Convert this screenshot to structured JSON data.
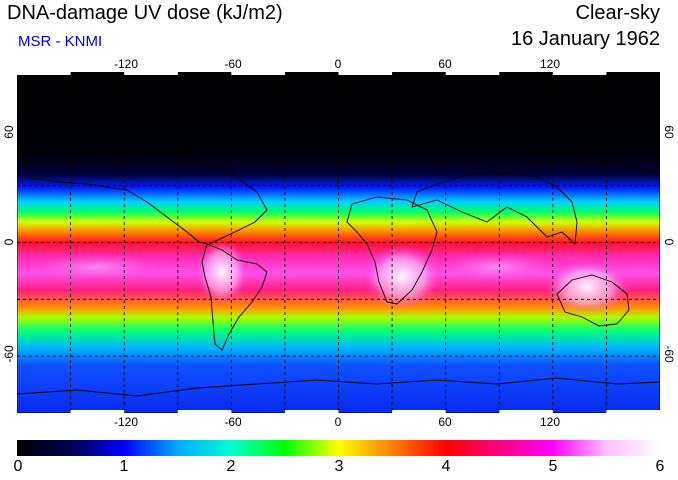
{
  "header": {
    "title": "DNA-damage UV dose (kJ/m2)",
    "source": "MSR - KNMI",
    "sky_condition": "Clear-sky",
    "date": "16 January 1962"
  },
  "map": {
    "lon_ticks": [
      "-120",
      "-60",
      "0",
      "60",
      "120"
    ],
    "lon_values": [
      -120,
      -60,
      0,
      60,
      120
    ],
    "lat_ticks": [
      "60",
      "0",
      "-60"
    ],
    "lat_values": [
      60,
      0,
      -60
    ],
    "lon_range": [
      -180,
      180
    ],
    "lat_range": [
      -90,
      90
    ],
    "gridline_style": "dashed"
  },
  "colorbar": {
    "ticks": [
      "0",
      "1",
      "2",
      "3",
      "4",
      "5",
      "6"
    ],
    "range": [
      0,
      6
    ],
    "colors": [
      "#000000",
      "#000050",
      "#0000ff",
      "#00aaff",
      "#00ffd0",
      "#00ff00",
      "#ffff00",
      "#ff8000",
      "#ff0000",
      "#ff0080",
      "#ff00ff",
      "#ffc0ff",
      "#ffffff"
    ]
  },
  "chart_data": {
    "type": "heatmap",
    "title": "DNA-damage UV dose (kJ/m2)",
    "variable": "DNA-damage UV dose",
    "units": "kJ/m2",
    "x_axis": "longitude",
    "y_axis": "latitude",
    "xlim": [
      -180,
      180
    ],
    "ylim": [
      -90,
      90
    ],
    "zonal_profile": {
      "latitude": [
        90,
        75,
        60,
        50,
        40,
        30,
        20,
        10,
        0,
        -10,
        -20,
        -30,
        -40,
        -50,
        -60,
        -70,
        -90
      ],
      "dose": [
        0.0,
        0.0,
        0.15,
        0.6,
        1.4,
        2.4,
        3.4,
        4.3,
        4.9,
        5.3,
        5.5,
        4.8,
        3.6,
        2.4,
        1.5,
        1.0,
        0.8
      ]
    },
    "peak_regions": [
      "South America (Andes)",
      "Southern Africa",
      "Australia"
    ],
    "colorbar_range": [
      0,
      6
    ]
  }
}
